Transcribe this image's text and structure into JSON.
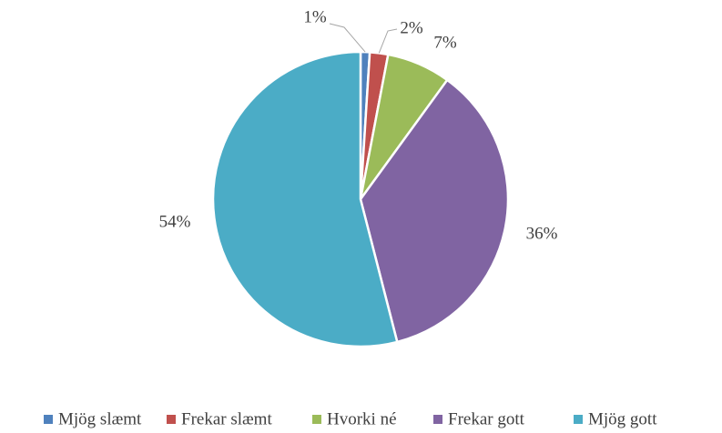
{
  "chart_data": {
    "type": "pie",
    "categories": [
      "Mjög slæmt",
      "Frekar slæmt",
      "Hvorki né",
      "Frekar gott",
      "Mjög gott"
    ],
    "values": [
      1,
      2,
      7,
      36,
      54
    ],
    "value_labels": [
      "1%",
      "2%",
      "7%",
      "36%",
      "54%"
    ],
    "colors": [
      "#4f81bd",
      "#c0504d",
      "#9bbb59",
      "#8064a2",
      "#4bacc6"
    ],
    "legend": "bottom"
  }
}
